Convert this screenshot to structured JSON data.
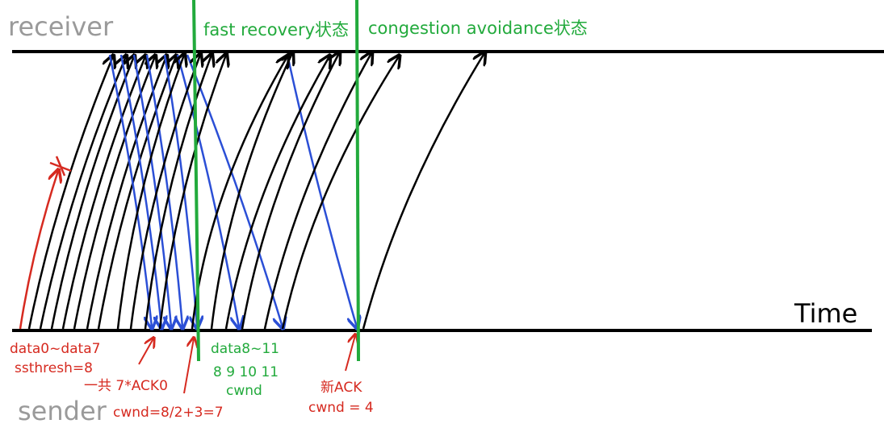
{
  "labels": {
    "receiver": "receiver",
    "sender": "sender",
    "time": "Time",
    "phase_fast_recovery": "fast recovery状态",
    "phase_congestion_avoidance": "congestion avoidance状态",
    "data_initial": "data0~data7",
    "ssthresh": "ssthresh=8",
    "ack_total": "一共 7*ACK0",
    "cwnd_fast": "cwnd=8/2+3=7",
    "data_new": "data8~11",
    "window_numbers": "8 9 10 11",
    "window_word": "cwnd",
    "new_ack": "新ACK",
    "cwnd_new": "cwnd = 4"
  },
  "colors": {
    "timeline": "#000000",
    "data_arrow": "#000000",
    "ack_arrow": "#2b4fd6",
    "lost_arrow": "#d62a20",
    "phase_line": "#22aa3c",
    "role_text": "#9a9a9a"
  },
  "arrows": {
    "lost_packet": {
      "count": 1,
      "marker": "lost-x-mark"
    },
    "data_initial_count": 7,
    "ack_count": 7,
    "data_new_count": 4,
    "data_later_count": 4
  }
}
